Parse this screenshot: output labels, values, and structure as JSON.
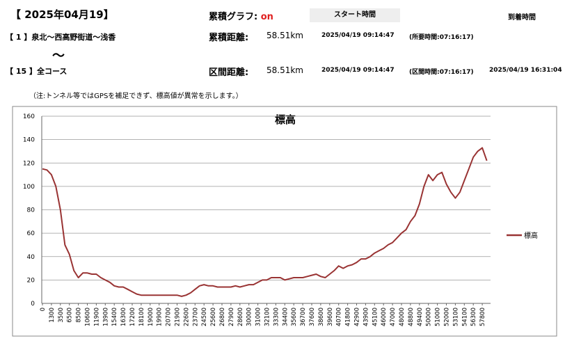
{
  "header": {
    "date": "【 2025年04月19】",
    "graph_label": "累積グラフ:",
    "graph_state": "on",
    "start_label": "スタート時間",
    "arrival_label": "到着時間",
    "row1": {
      "course": "【 1 】泉北～西高野街道～浅香",
      "distance_label": "累積距離:",
      "distance": "58.51km",
      "start": "2025/04/19 09:14:47",
      "duration": "(所要時間:07:16:17)"
    },
    "tilde": "～",
    "row2": {
      "course": "【 15 】全コース",
      "distance_label": "区間距離:",
      "distance": "58.51km",
      "start": "2025/04/19 09:14:47",
      "duration": "(区間時間:07:16:17)",
      "arrival": "2025/04/19 16:31:04"
    },
    "note": "（注:トンネル等ではGPSを補足できず、標高値が異常を示します。）"
  },
  "chart_data": {
    "type": "line",
    "title": "標高",
    "categories": [
      "0",
      null,
      "1300",
      null,
      "3500",
      null,
      "6500",
      null,
      "8500",
      null,
      "10600",
      null,
      "11900",
      null,
      "13900",
      null,
      "15400",
      null,
      "16300",
      null,
      "17200",
      null,
      "18100",
      null,
      "19000",
      null,
      "19900",
      null,
      "20700",
      null,
      "21900",
      null,
      "22600",
      null,
      "23700",
      null,
      "24500",
      null,
      "25600",
      null,
      "26800",
      null,
      "27900",
      null,
      "28600",
      null,
      "30000",
      null,
      "31000",
      null,
      "32100",
      null,
      "33300",
      null,
      "34400",
      null,
      "35600",
      null,
      "36700",
      null,
      "37600",
      null,
      "38600",
      null,
      "39600",
      null,
      "40700",
      null,
      "41800",
      null,
      "42900",
      null,
      "43900",
      null,
      "45100",
      null,
      "46000",
      null,
      "47000",
      null,
      "48000",
      null,
      "48800",
      null,
      "49400",
      null,
      "50000",
      null,
      "51000",
      null,
      "52000",
      null,
      "53100",
      null,
      "54100",
      null,
      "56300",
      null,
      "57800",
      null
    ],
    "series": [
      {
        "name": "標高",
        "color": "#993333",
        "values": [
          115,
          114,
          110,
          100,
          80,
          50,
          42,
          28,
          22,
          26,
          26,
          25,
          25,
          22,
          20,
          18,
          15,
          14,
          14,
          12,
          10,
          8,
          7,
          7,
          7,
          7,
          7,
          7,
          7,
          7,
          7,
          6,
          7,
          9,
          12,
          15,
          16,
          15,
          15,
          14,
          14,
          14,
          14,
          15,
          14,
          15,
          16,
          16,
          18,
          20,
          20,
          22,
          22,
          22,
          20,
          21,
          22,
          22,
          22,
          23,
          24,
          25,
          23,
          22,
          25,
          28,
          32,
          30,
          32,
          33,
          35,
          38,
          38,
          40,
          43,
          45,
          47,
          50,
          52,
          56,
          60,
          63,
          70,
          75,
          85,
          100,
          110,
          105,
          110,
          112,
          102,
          95,
          90,
          95,
          105,
          115,
          125,
          130,
          133,
          122
        ]
      }
    ],
    "ylim": [
      0,
      160
    ],
    "yticks": [
      0,
      20,
      40,
      60,
      80,
      100,
      120,
      140,
      160
    ],
    "grid": true,
    "legend": "right"
  }
}
